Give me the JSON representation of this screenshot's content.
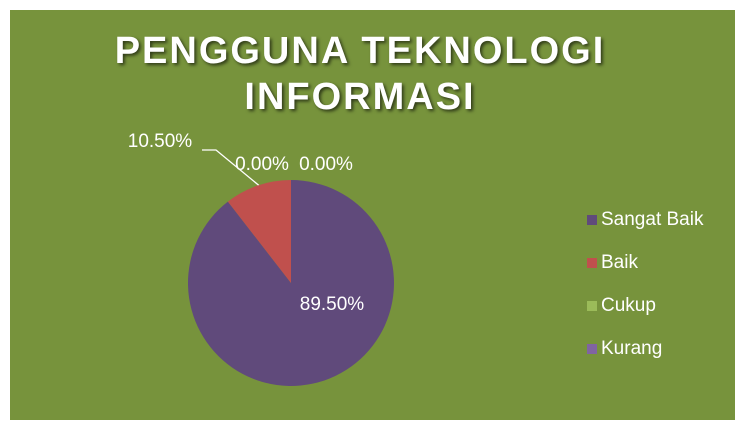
{
  "chart_data": {
    "type": "pie",
    "title": "PENGGUNA TEKNOLOGI INFORMASI",
    "categories": [
      "Sangat Baik",
      "Baik",
      "Cukup",
      "Kurang"
    ],
    "values": [
      89.5,
      10.5,
      0,
      0
    ],
    "value_labels": [
      "89.50%",
      "10.50%",
      "0.00%",
      "0.00%"
    ],
    "colors": [
      "#604a7b",
      "#c0504d",
      "#9bbb59",
      "#8064a2"
    ],
    "legend": "right"
  }
}
